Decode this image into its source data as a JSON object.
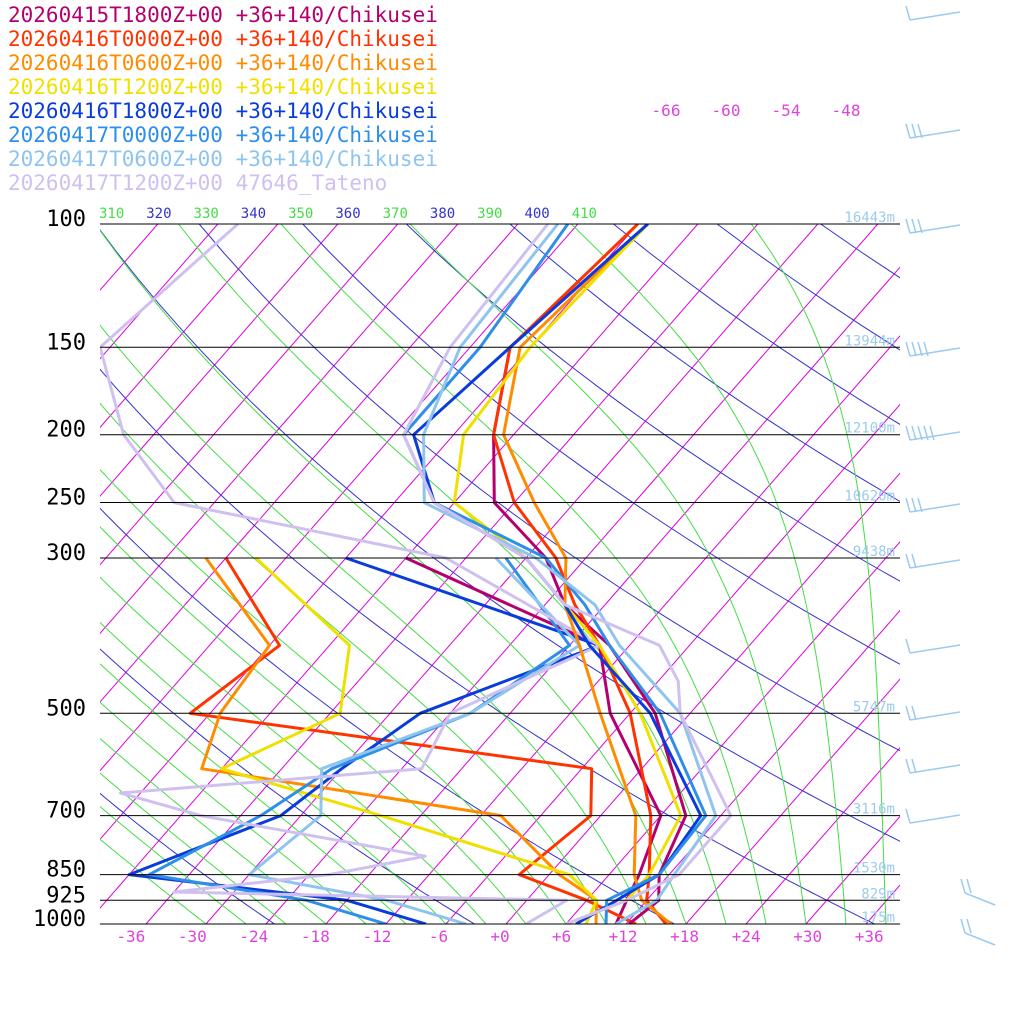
{
  "chart_data": {
    "type": "line",
    "chart_kind": "skew-T log-P sounding",
    "legend_placement": "top-left",
    "legend": [
      {
        "label": "20260415T1800Z+00 +36+140/Chikusei",
        "color": "#b3006e"
      },
      {
        "label": "20260416T0000Z+00 +36+140/Chikusei",
        "color": "#ff3300"
      },
      {
        "label": "20260416T0600Z+00 +36+140/Chikusei",
        "color": "#ff8c00"
      },
      {
        "label": "20260416T1200Z+00 +36+140/Chikusei",
        "color": "#f0e000"
      },
      {
        "label": "20260416T1800Z+00 +36+140/Chikusei",
        "color": "#0a3cdc"
      },
      {
        "label": "20260417T0000Z+00 +36+140/Chikusei",
        "color": "#2f8fe8"
      },
      {
        "label": "20260417T0600Z+00 +36+140/Chikusei",
        "color": "#8ec4ee"
      },
      {
        "label": "20260417T1200Z+00 47646_Tateno",
        "color": "#d0c0f0"
      }
    ],
    "pressure_levels": [
      {
        "p": 100,
        "label": "100",
        "height": "16443m"
      },
      {
        "p": 150,
        "label": "150",
        "height": "13944m"
      },
      {
        "p": 200,
        "label": "200",
        "height": "12100m"
      },
      {
        "p": 250,
        "label": "250",
        "height": "10620m"
      },
      {
        "p": 300,
        "label": "300",
        "height": "9438m"
      },
      {
        "p": 500,
        "label": "500",
        "height": "5747m"
      },
      {
        "p": 700,
        "label": "700",
        "height": "3116m"
      },
      {
        "p": 850,
        "label": "850",
        "height": "1530m"
      },
      {
        "p": 925,
        "label": "925",
        "height": "829m"
      },
      {
        "p": 1000,
        "label": "1000",
        "height": "175m"
      }
    ],
    "temperature_ticks": [
      "-36",
      "-30",
      "-24",
      "-18",
      "-12",
      "-6",
      "+0",
      "+6",
      "+12",
      "+18",
      "+24",
      "+30",
      "+36"
    ],
    "upper_temperature_labels": [
      "-66",
      "-60",
      "-54",
      "-48"
    ],
    "theta_e_labels": [
      {
        "label": "310",
        "color": "#44dd44"
      },
      {
        "label": "320",
        "color": "#3333cc"
      },
      {
        "label": "330",
        "color": "#44dd44"
      },
      {
        "label": "340",
        "color": "#3333cc"
      },
      {
        "label": "350",
        "color": "#44dd44"
      },
      {
        "label": "360",
        "color": "#3333cc"
      },
      {
        "label": "370",
        "color": "#44dd44"
      },
      {
        "label": "380",
        "color": "#3333cc"
      },
      {
        "label": "390",
        "color": "#44dd44"
      },
      {
        "label": "400",
        "color": "#3333cc"
      },
      {
        "label": "410",
        "color": "#44dd44"
      }
    ],
    "x_range": [
      -40,
      40
    ],
    "y_range_hpa": [
      100,
      1000
    ],
    "log_pressure_axis": true,
    "temperature_profiles": [
      {
        "name": "20260415T1800Z+00 +36+140/Chikusei",
        "color": "#b3006e",
        "points": [
          [
            1000,
            12.3
          ],
          [
            925,
            13.2
          ],
          [
            850,
            11.0
          ],
          [
            700,
            8.5
          ],
          [
            500,
            -3.5
          ],
          [
            400,
            -14
          ],
          [
            350,
            -22
          ],
          [
            300,
            -28
          ],
          [
            250,
            -38
          ],
          [
            200,
            -44
          ],
          [
            150,
            -50
          ],
          [
            100,
            -47
          ]
        ]
      },
      {
        "name": "20260416T0000Z+00 +36+140/Chikusei",
        "color": "#ff3300",
        "points": [
          [
            1000,
            16
          ],
          [
            925,
            12
          ],
          [
            850,
            10
          ],
          [
            700,
            5
          ],
          [
            500,
            -6
          ],
          [
            400,
            -15
          ],
          [
            350,
            -21
          ],
          [
            300,
            -27
          ],
          [
            250,
            -36
          ],
          [
            200,
            -44
          ],
          [
            150,
            -50
          ],
          [
            100,
            -48
          ]
        ]
      },
      {
        "name": "20260416T0600Z+00 +36+140/Chikusei",
        "color": "#ff8c00",
        "points": [
          [
            1000,
            16.5
          ],
          [
            925,
            11.5
          ],
          [
            850,
            8.5
          ],
          [
            700,
            3.5
          ],
          [
            500,
            -9
          ],
          [
            400,
            -17
          ],
          [
            350,
            -22
          ],
          [
            300,
            -26
          ],
          [
            250,
            -34
          ],
          [
            200,
            -43
          ],
          [
            150,
            -49
          ],
          [
            100,
            -47
          ]
        ]
      },
      {
        "name": "20260416T1200Z+00 +36+140/Chikusei",
        "color": "#f0e000",
        "points": [
          [
            1000,
            6
          ],
          [
            925,
            10
          ],
          [
            850,
            10
          ],
          [
            700,
            8
          ],
          [
            500,
            -5
          ],
          [
            400,
            -15
          ],
          [
            350,
            -22
          ],
          [
            300,
            -30
          ],
          [
            250,
            -42
          ],
          [
            200,
            -47
          ],
          [
            150,
            -48
          ],
          [
            100,
            -47
          ]
        ]
      },
      {
        "name": "20260416T1800Z+00 +36+140/Chikusei",
        "color": "#0a3cdc",
        "points": [
          [
            1000,
            7
          ],
          [
            925,
            9
          ],
          [
            850,
            11
          ],
          [
            700,
            10
          ],
          [
            500,
            -4
          ],
          [
            400,
            -16
          ],
          [
            350,
            -22
          ],
          [
            300,
            -30
          ],
          [
            250,
            -44
          ],
          [
            200,
            -52
          ],
          [
            150,
            -50
          ],
          [
            100,
            -47
          ]
        ]
      },
      {
        "name": "20260417T0000Z+00 +36+140/Chikusei",
        "color": "#2f8fe8",
        "points": [
          [
            1000,
            10
          ],
          [
            925,
            8
          ],
          [
            850,
            11
          ],
          [
            700,
            10.5
          ],
          [
            500,
            -3
          ],
          [
            400,
            -14
          ],
          [
            350,
            -20
          ],
          [
            300,
            -28
          ],
          [
            250,
            -44
          ],
          [
            200,
            -53
          ],
          [
            150,
            -53
          ],
          [
            100,
            -55
          ]
        ]
      },
      {
        "name": "20260417T0600Z+00 +36+140/Chikusei",
        "color": "#8ec4ee",
        "points": [
          [
            1000,
            11
          ],
          [
            925,
            13
          ],
          [
            850,
            12.5
          ],
          [
            700,
            11.5
          ],
          [
            500,
            -1
          ],
          [
            400,
            -13
          ],
          [
            350,
            -19
          ],
          [
            300,
            -29
          ],
          [
            250,
            -45
          ],
          [
            200,
            -51
          ],
          [
            150,
            -55
          ],
          [
            100,
            -56
          ]
        ]
      },
      {
        "name": "20260417T1200Z+00 47646_Tateno",
        "color": "#d0c0f0",
        "points": [
          [
            1000,
            6
          ],
          [
            925,
            10
          ],
          [
            850,
            13
          ],
          [
            700,
            13
          ],
          [
            500,
            -1
          ],
          [
            450,
            -4
          ],
          [
            400,
            -9
          ],
          [
            380,
            -14
          ],
          [
            350,
            -22
          ],
          [
            300,
            -30
          ],
          [
            250,
            -44
          ],
          [
            200,
            -53
          ],
          [
            150,
            -56
          ],
          [
            100,
            -57
          ]
        ]
      }
    ],
    "dewpoint_profiles": [
      {
        "name": "20260415T1800Z+00 +36+140/Chikusei",
        "color": "#b3006e",
        "points": [
          [
            1000,
            11
          ],
          [
            925,
            10
          ],
          [
            850,
            9
          ],
          [
            700,
            6
          ],
          [
            500,
            -8
          ],
          [
            400,
            -15
          ],
          [
            300,
            -42
          ]
        ]
      },
      {
        "name": "20260416T0000Z+00 +36+140/Chikusei",
        "color": "#ff3300",
        "points": [
          [
            1000,
            13
          ],
          [
            925,
            6
          ],
          [
            850,
            -3
          ],
          [
            700,
            -1
          ],
          [
            600,
            -5
          ],
          [
            500,
            -50
          ],
          [
            400,
            -47
          ],
          [
            300,
            -60
          ]
        ]
      },
      {
        "name": "20260416T0600Z+00 +36+140/Chikusei",
        "color": "#ff8c00",
        "points": [
          [
            1000,
            9
          ],
          [
            925,
            7
          ],
          [
            850,
            1
          ],
          [
            700,
            -10
          ],
          [
            600,
            -44
          ],
          [
            500,
            -47
          ],
          [
            400,
            -48
          ],
          [
            300,
            -62
          ]
        ]
      },
      {
        "name": "20260416T1200Z+00 +36+140/Chikusei",
        "color": "#f0e000",
        "points": [
          [
            1000,
            8
          ],
          [
            925,
            7
          ],
          [
            850,
            2
          ],
          [
            700,
            -22
          ],
          [
            600,
            -42
          ],
          [
            500,
            -35
          ],
          [
            400,
            -40
          ],
          [
            300,
            -57
          ]
        ]
      },
      {
        "name": "20260416T1800Z+00 +36+140/Chikusei",
        "color": "#0a3cdc",
        "points": [
          [
            1000,
            -8
          ],
          [
            925,
            -18
          ],
          [
            850,
            -42
          ],
          [
            700,
            -32
          ],
          [
            600,
            -30
          ],
          [
            500,
            -27
          ],
          [
            400,
            -15
          ],
          [
            300,
            -48
          ]
        ]
      },
      {
        "name": "20260417T0000Z+00 +36+140/Chikusei",
        "color": "#2f8fe8",
        "points": [
          [
            1000,
            -12
          ],
          [
            925,
            -22
          ],
          [
            850,
            -40
          ],
          [
            700,
            -34
          ],
          [
            600,
            -31
          ],
          [
            500,
            -22
          ],
          [
            400,
            -18
          ],
          [
            300,
            -32
          ]
        ]
      },
      {
        "name": "20260417T0600Z+00 +36+140/Chikusei",
        "color": "#8ec4ee",
        "points": [
          [
            1000,
            -4
          ],
          [
            925,
            -14
          ],
          [
            850,
            -30
          ],
          [
            700,
            -28
          ],
          [
            600,
            -32
          ],
          [
            500,
            -22
          ],
          [
            400,
            -17
          ],
          [
            300,
            -33
          ]
        ]
      },
      {
        "name": "20260417T1200Z+00 47646_Tateno",
        "color": "#d0c0f0",
        "points": [
          [
            1000,
            2
          ],
          [
            925,
            4
          ],
          [
            900,
            -36
          ],
          [
            850,
            -22
          ],
          [
            800,
            -14
          ],
          [
            700,
            -40
          ],
          [
            650,
            -50
          ],
          [
            600,
            -22
          ],
          [
            500,
            -24
          ],
          [
            400,
            -15
          ],
          [
            300,
            -38
          ],
          [
            250,
            -70
          ],
          [
            200,
            -81
          ],
          [
            150,
            -91
          ],
          [
            100,
            -88
          ]
        ]
      }
    ],
    "wind_barb_color": "#9ccbef",
    "line_colors": {
      "isobar": "#000000",
      "isotherm": "#dd00dd",
      "dry_adiabat": "#3333cc",
      "moist_adiabat": "#44dd44",
      "temperature_label": "#dd44dd",
      "height_label": "#9ccbef"
    }
  }
}
